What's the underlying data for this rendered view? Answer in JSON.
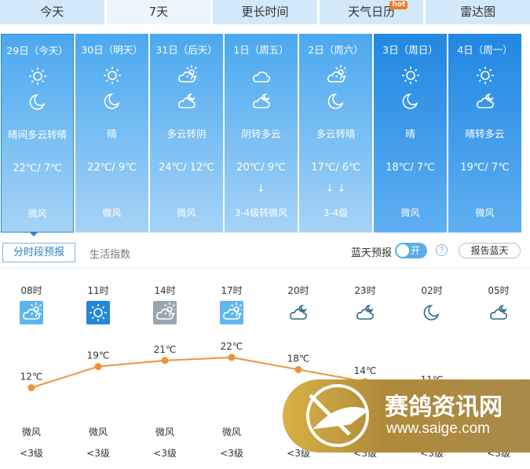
{
  "tabs": [
    {
      "label": "今天"
    },
    {
      "label": "7天",
      "active": true
    },
    {
      "label": "更长时间"
    },
    {
      "label": "天气日历",
      "badge": "hot"
    },
    {
      "label": "雷达图"
    }
  ],
  "days": [
    {
      "date": "29日（今天）",
      "day_icon": "sun",
      "night_icon": "moon",
      "desc": "晴间多云转晴",
      "temp": "22℃/ 7℃",
      "arrows": "",
      "wind": "微风",
      "selected": true
    },
    {
      "date": "30日（明天）",
      "day_icon": "sun",
      "night_icon": "moon",
      "desc": "晴",
      "temp": "22℃/ 9℃",
      "arrows": "",
      "wind": "微风"
    },
    {
      "date": "31日（后天）",
      "day_icon": "cloud-sun",
      "night_icon": "cloud-moon",
      "desc": "多云转阴",
      "temp": "24℃/ 12℃",
      "arrows": "",
      "wind": "微风"
    },
    {
      "date": "1日（周五）",
      "day_icon": "cloud",
      "night_icon": "cloud-moon",
      "desc": "阴转多云",
      "temp": "20℃/ 9℃",
      "arrows": "↓",
      "wind": "3-4级转微风"
    },
    {
      "date": "2日（周六）",
      "day_icon": "cloud-sun",
      "night_icon": "moon",
      "desc": "多云转晴",
      "temp": "17℃/ 6℃",
      "arrows": "↓ ↓",
      "wind": "3-4级"
    },
    {
      "date": "3日（周日）",
      "day_icon": "sun",
      "night_icon": "moon",
      "desc": "晴",
      "temp": "18℃/ 7℃",
      "arrows": "",
      "wind": "微风",
      "dark": true
    },
    {
      "date": "4日（周一）",
      "day_icon": "sun",
      "night_icon": "cloud-moon",
      "desc": "晴转多云",
      "temp": "19℃/ 7℃",
      "arrows": "",
      "wind": "微风",
      "dark": true
    }
  ],
  "subtabs": {
    "hourly": "分时段预报",
    "life": "生活指数"
  },
  "bluesky": {
    "label": "蓝天预报",
    "toggle": "开",
    "help": "?",
    "report": "报告蓝天"
  },
  "hourly": [
    {
      "time": "08时",
      "icon": "cloud-sun",
      "bg": "#5fb4ec",
      "temp": 12,
      "temp_label": "12℃",
      "wind": "微风",
      "level": "<3级"
    },
    {
      "time": "11时",
      "icon": "sun",
      "bg": "#2587d8",
      "temp": 19,
      "temp_label": "19℃",
      "wind": "微风",
      "level": "<3级"
    },
    {
      "time": "14时",
      "icon": "cloud-sun",
      "bg": "#98a6b3",
      "temp": 21,
      "temp_label": "21℃",
      "wind": "微风",
      "level": "<3级"
    },
    {
      "time": "17时",
      "icon": "cloud-sun",
      "bg": "#62b6ee",
      "temp": 22,
      "temp_label": "22℃",
      "wind": "微风",
      "level": "<3级"
    },
    {
      "time": "20时",
      "icon": "cloud-moon",
      "bg": "",
      "temp": 18,
      "temp_label": "18℃",
      "wind": "微风",
      "level": "<3级"
    },
    {
      "time": "23时",
      "icon": "cloud-moon",
      "bg": "",
      "temp": 14,
      "temp_label": "14℃",
      "wind": "",
      "level": "<3级"
    },
    {
      "time": "02时",
      "icon": "moon",
      "bg": "",
      "temp": 11,
      "temp_label": "11℃",
      "wind": "",
      "level": "<3级"
    },
    {
      "time": "05时",
      "icon": "cloud-moon",
      "bg": "",
      "temp": null,
      "temp_label": "",
      "wind": "",
      "level": "<3级"
    }
  ],
  "watermark": {
    "name": "赛鸽资讯网",
    "url": "www.saige.com"
  },
  "colors": {
    "line": "#f0913a",
    "accent": "#2a86d0"
  }
}
